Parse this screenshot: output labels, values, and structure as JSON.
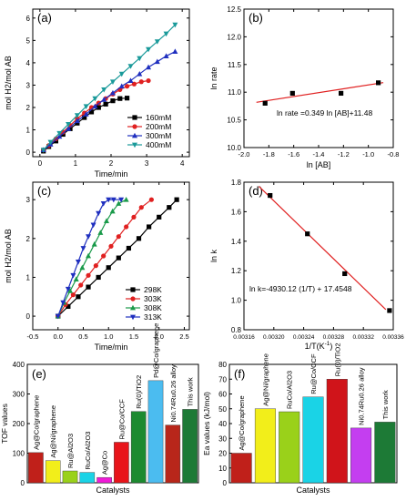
{
  "chart_data": [
    {
      "panel": "(a)",
      "type": "line",
      "xlabel": "Time/min",
      "ylabel": "mol H2/mol AB",
      "xlim": [
        -0.2,
        4.2
      ],
      "ylim": [
        -0.2,
        6.4
      ],
      "xticks": [
        0,
        1,
        2,
        3,
        4
      ],
      "yticks": [
        0,
        1,
        2,
        3,
        4,
        5,
        6
      ],
      "legend_position": "bottom-right",
      "series": [
        {
          "name": "160mM",
          "color": "#000000",
          "marker": "square",
          "x": [
            0.1,
            0.25,
            0.45,
            0.65,
            0.85,
            1.05,
            1.25,
            1.45,
            1.65,
            1.85,
            2.05,
            2.25,
            2.45
          ],
          "y": [
            0.05,
            0.25,
            0.5,
            0.8,
            1.05,
            1.3,
            1.55,
            1.8,
            2.0,
            2.15,
            2.3,
            2.4,
            2.42
          ]
        },
        {
          "name": "200mM",
          "color": "#e02020",
          "marker": "circle",
          "x": [
            0.1,
            0.25,
            0.45,
            0.65,
            0.85,
            1.05,
            1.25,
            1.45,
            1.65,
            1.85,
            2.05,
            2.25,
            2.45,
            2.65,
            2.85,
            3.05
          ],
          "y": [
            0.1,
            0.3,
            0.6,
            0.9,
            1.2,
            1.5,
            1.75,
            2.0,
            2.2,
            2.4,
            2.6,
            2.8,
            2.95,
            3.05,
            3.15,
            3.2
          ]
        },
        {
          "name": "300mM",
          "color": "#1f2fbf",
          "marker": "triangle",
          "x": [
            0.1,
            0.3,
            0.55,
            0.8,
            1.05,
            1.3,
            1.55,
            1.8,
            2.05,
            2.3,
            2.55,
            2.8,
            3.05,
            3.3,
            3.55,
            3.8
          ],
          "y": [
            0.1,
            0.35,
            0.7,
            1.05,
            1.4,
            1.7,
            2.05,
            2.35,
            2.65,
            2.95,
            3.2,
            3.5,
            3.8,
            4.05,
            4.3,
            4.5
          ]
        },
        {
          "name": "400mM",
          "color": "#1a9a9a",
          "marker": "triangle-down",
          "x": [
            0.1,
            0.3,
            0.55,
            0.8,
            1.05,
            1.3,
            1.55,
            1.8,
            2.05,
            2.3,
            2.55,
            2.8,
            3.05,
            3.3,
            3.55,
            3.8
          ],
          "y": [
            0.1,
            0.45,
            0.85,
            1.25,
            1.65,
            2.05,
            2.4,
            2.8,
            3.15,
            3.5,
            3.85,
            4.2,
            4.6,
            4.95,
            5.3,
            5.7
          ]
        }
      ]
    },
    {
      "panel": "(b)",
      "type": "scatter",
      "xlabel": "ln [AB]",
      "ylabel": "ln rate",
      "xlim": [
        -2.0,
        -0.8
      ],
      "ylim": [
        10.0,
        12.5
      ],
      "xticks": [
        -2.0,
        -1.8,
        -1.6,
        -1.4,
        -1.2,
        -1.0,
        -0.8
      ],
      "yticks": [
        10.0,
        10.5,
        11.0,
        11.5,
        12.0,
        12.5
      ],
      "annotation": "ln rate =0.349 ln [AB]+11.48",
      "fit": {
        "slope": 0.349,
        "intercept": 11.48,
        "x_range": [
          -1.9,
          -0.88
        ],
        "color": "#e02020"
      },
      "points": {
        "x": [
          -1.83,
          -1.61,
          -1.22,
          -0.92
        ],
        "y": [
          10.8,
          10.98,
          10.98,
          11.17
        ]
      }
    },
    {
      "panel": "(c)",
      "type": "line",
      "xlabel": "Time/min",
      "ylabel": "mol H2/mol AB",
      "xlim": [
        -0.5,
        2.6
      ],
      "ylim": [
        -0.35,
        3.45
      ],
      "xticks": [
        -0.5,
        0.0,
        0.5,
        1.0,
        1.5,
        2.0,
        2.5
      ],
      "yticks": [
        0,
        1,
        2,
        3
      ],
      "legend_position": "bottom-right",
      "series": [
        {
          "name": "298K",
          "color": "#000000",
          "marker": "square",
          "x": [
            0.0,
            0.2,
            0.4,
            0.6,
            0.8,
            1.0,
            1.2,
            1.4,
            1.6,
            1.8,
            2.0,
            2.2,
            2.35
          ],
          "y": [
            0.0,
            0.25,
            0.5,
            0.75,
            1.0,
            1.25,
            1.5,
            1.75,
            2.0,
            2.3,
            2.55,
            2.8,
            3.0
          ]
        },
        {
          "name": "303K",
          "color": "#e02020",
          "marker": "circle",
          "x": [
            0.0,
            0.15,
            0.3,
            0.45,
            0.6,
            0.75,
            0.9,
            1.05,
            1.2,
            1.35,
            1.5,
            1.65,
            1.85
          ],
          "y": [
            0.0,
            0.3,
            0.55,
            0.8,
            1.05,
            1.3,
            1.55,
            1.8,
            2.05,
            2.3,
            2.55,
            2.8,
            3.0
          ]
        },
        {
          "name": "308K",
          "color": "#1a9a4a",
          "marker": "triangle",
          "x": [
            0.0,
            0.12,
            0.24,
            0.36,
            0.48,
            0.6,
            0.72,
            0.84,
            0.96,
            1.08,
            1.2,
            1.35
          ],
          "y": [
            0.0,
            0.35,
            0.65,
            0.95,
            1.25,
            1.55,
            1.85,
            2.15,
            2.45,
            2.7,
            2.9,
            3.0
          ]
        },
        {
          "name": "313K",
          "color": "#1f2fbf",
          "marker": "triangle-down",
          "x": [
            0.0,
            0.1,
            0.2,
            0.3,
            0.4,
            0.5,
            0.6,
            0.7,
            0.8,
            0.9,
            1.0,
            1.1,
            1.25
          ],
          "y": [
            0.0,
            0.35,
            0.7,
            1.05,
            1.4,
            1.75,
            2.05,
            2.35,
            2.65,
            2.9,
            3.0,
            3.0,
            3.0
          ]
        }
      ]
    },
    {
      "panel": "(d)",
      "type": "scatter",
      "xlabel": "1/T(K",
      "xlabel_superscript": "-1",
      "xlabel_suffix": ")",
      "ylabel": "ln k",
      "xlim": [
        0.00316,
        0.00336
      ],
      "ylim": [
        0.8,
        1.8
      ],
      "xticks": [
        0.00316,
        0.0032,
        0.00324,
        0.00328,
        0.00332,
        0.00336
      ],
      "yticks": [
        0.8,
        1.0,
        1.2,
        1.4,
        1.6,
        1.8
      ],
      "annotation": "ln k=-4930.12 (1/T) + 17.4548",
      "fit": {
        "color": "#e02020",
        "x_range": [
          0.00318,
          0.00335
        ]
      },
      "points": {
        "x": [
          0.003195,
          0.003245,
          0.003295,
          0.003355
        ],
        "y": [
          1.71,
          1.45,
          1.18,
          0.93
        ]
      }
    },
    {
      "panel": "(e)",
      "type": "bar",
      "xlabel": "Catalysts",
      "ylabel": "TOF values",
      "ylim": [
        0,
        400
      ],
      "yticks": [
        0,
        100,
        200,
        300,
        400
      ],
      "categories": [
        "Ag@Co/graphene",
        "Ag@Ni/graphene",
        "Ru@Al2O3",
        "RuCo/Al2O3",
        "Ag@Co",
        "Ru@Co/CCF",
        "Ru(0)/TiO2",
        "Pd@Co/graphene",
        "Ni0.74Ru0.26 alloy",
        "This work"
      ],
      "values": [
        102,
        75,
        40,
        35,
        18,
        137,
        241,
        345,
        195,
        248
      ],
      "colors": [
        "#c0201a",
        "#f2ee1a",
        "#9ad11a",
        "#1ad3e6",
        "#f01ad8",
        "#e8141a",
        "#1d8a30",
        "#4bbcf0",
        "#b8261a",
        "#1d7a36"
      ]
    },
    {
      "panel": "(f)",
      "type": "bar",
      "xlabel": "Catalysts",
      "ylabel": "Ea values (kJ/mol)",
      "ylim": [
        0,
        80
      ],
      "yticks": [
        0,
        10,
        20,
        30,
        40,
        50,
        60,
        70,
        80
      ],
      "categories": [
        "Ag@Co/graphene",
        "Ag@Ni/graphene",
        "RuCo/Al2O3",
        "Ru@Co/CCF",
        "Ru(0)/TiO2",
        "Ni0.74Ru0.26 alloy",
        "This work"
      ],
      "values": [
        20,
        50,
        48,
        58,
        70,
        37,
        41
      ],
      "colors": [
        "#c0201a",
        "#f2ee1a",
        "#9ad11a",
        "#1ad3e6",
        "#d0141a",
        "#c43ef0",
        "#1d7a36"
      ]
    }
  ]
}
